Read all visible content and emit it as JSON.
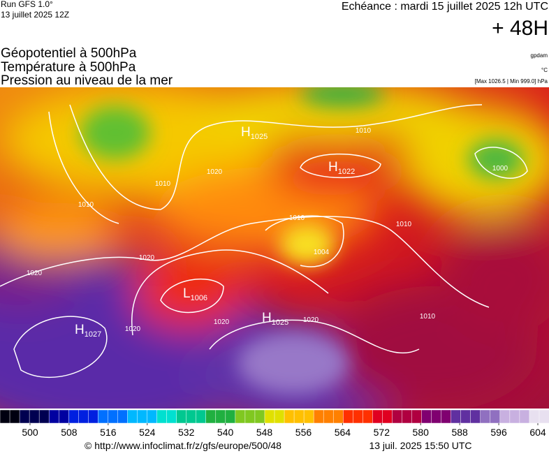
{
  "header": {
    "run": "Run GFS 1.0°",
    "run_date": "13 juillet 2025 12Z",
    "echeance": "Echéance : mardi 15 juillet 2025 12h UTC",
    "lead": "+ 48H"
  },
  "fields": [
    "Géopotentiel à 500hPa",
    "Température à 500hPa",
    "Pression au niveau de la mer"
  ],
  "units": [
    "gpdam",
    "°C",
    "[Max 1026.5 | Min 999.0] hPa"
  ],
  "centers": [
    {
      "type": "H",
      "value": "1025"
    },
    {
      "type": "H",
      "value": "1022"
    },
    {
      "type": "L",
      "value": "1006"
    },
    {
      "type": "H",
      "value": "1025"
    },
    {
      "type": "H",
      "value": "1027"
    }
  ],
  "isobar_labels": [
    "1010",
    "1000",
    "1020",
    "1010",
    "1010",
    "1010",
    "1010",
    "1004",
    "1020",
    "1020",
    "1020",
    "1020",
    "1020",
    "1010"
  ],
  "colorbar": {
    "ticks": [
      500,
      508,
      516,
      524,
      532,
      540,
      548,
      556,
      564,
      572,
      580,
      588,
      596,
      604
    ]
  },
  "footer": {
    "source": "© http://www.infoclimat.fr/z/gfs/europe/500/48",
    "date": "13 juil. 2025 15:50 UTC"
  }
}
